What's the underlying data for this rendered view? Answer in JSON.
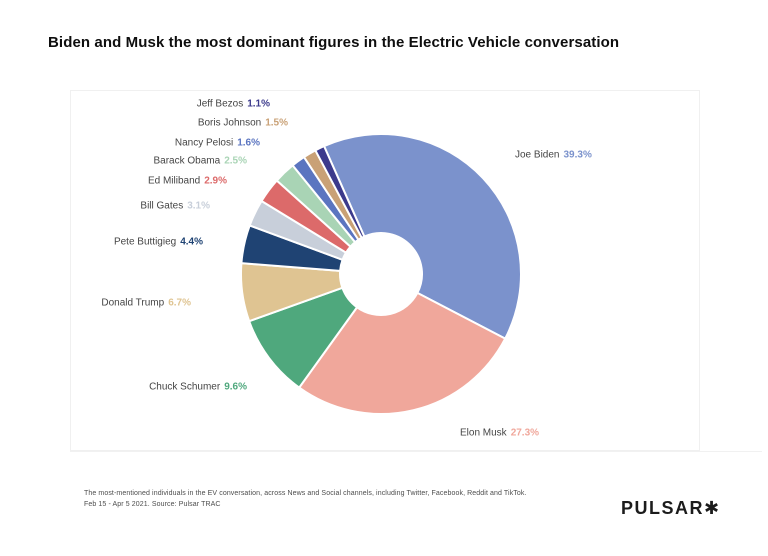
{
  "chart_data": {
    "type": "pie",
    "donut": true,
    "unit": "%",
    "title": "Biden and Musk the most dominant figures in the Electric Vehicle conversation",
    "legend_position": "labels-around-donut",
    "slices": [
      {
        "name": "Joe Biden",
        "value": 39.3,
        "label": "39.3%",
        "color": "#7B92CC"
      },
      {
        "name": "Elon Musk",
        "value": 27.3,
        "label": "27.3%",
        "color": "#F0A79B"
      },
      {
        "name": "Chuck Schumer",
        "value": 9.6,
        "label": "9.6%",
        "color": "#4FA87D"
      },
      {
        "name": "Donald Trump",
        "value": 6.7,
        "label": "6.7%",
        "color": "#DFC492"
      },
      {
        "name": "Pete Buttigieg",
        "value": 4.4,
        "label": "4.4%",
        "color": "#1F4373"
      },
      {
        "name": "Bill Gates",
        "value": 3.1,
        "label": "3.1%",
        "color": "#C8CFDA"
      },
      {
        "name": "Ed Miliband",
        "value": 2.9,
        "label": "2.9%",
        "color": "#DC6A6A"
      },
      {
        "name": "Barack Obama",
        "value": 2.5,
        "label": "2.5%",
        "color": "#A9D4B5"
      },
      {
        "name": "Nancy Pelosi",
        "value": 1.6,
        "label": "1.6%",
        "color": "#5B75C0"
      },
      {
        "name": "Boris Johnson",
        "value": 1.5,
        "label": "1.5%",
        "color": "#C9A176"
      },
      {
        "name": "Jeff Bezos",
        "value": 1.1,
        "label": "1.1%",
        "color": "#3C3A8C"
      }
    ]
  },
  "footer": {
    "caption_line1": "The most-mentioned individuals in the EV conversation, across News and Social channels, including Twitter, Facebook, Reddit and TikTok.",
    "caption_line2": "Feb 15 - Apr 5 2021. Source: Pulsar TRAC",
    "logo_text": "PULSAR",
    "logo_mark": "✱"
  }
}
